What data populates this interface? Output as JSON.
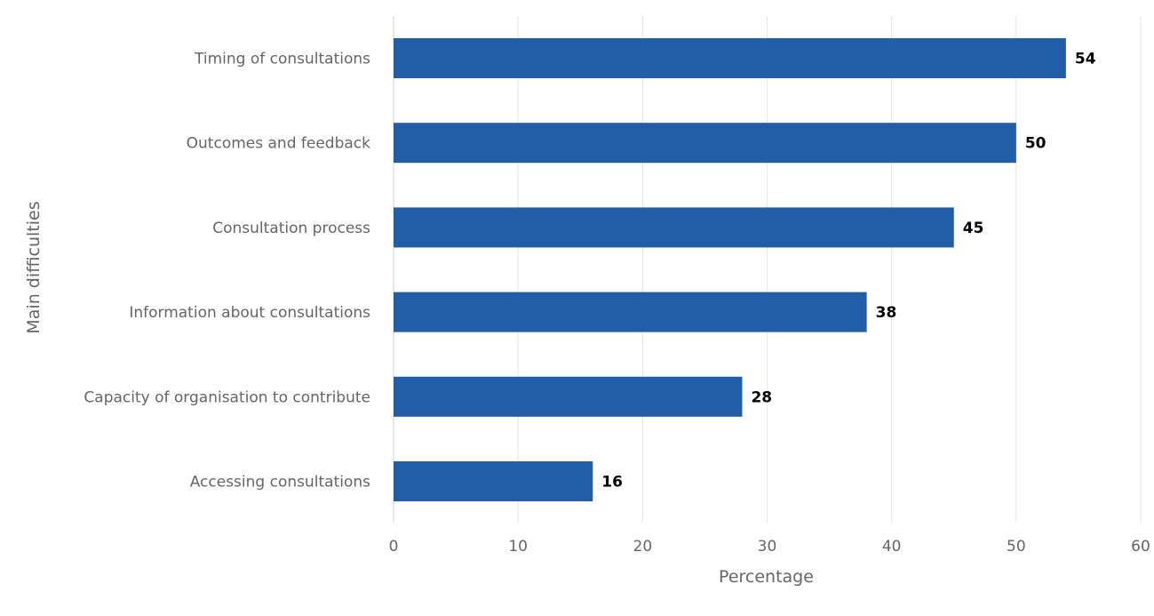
{
  "chart_data": {
    "type": "bar",
    "orientation": "horizontal",
    "categories": [
      "Timing of consultations",
      "Outcomes and feedback",
      "Consultation process",
      "Information about consultations",
      "Capacity of organisation to contribute",
      "Accessing consultations"
    ],
    "values": [
      54,
      50,
      45,
      38,
      28,
      16
    ],
    "xlabel": "Percentage",
    "ylabel": "Main difficulties",
    "xlim": [
      0,
      60
    ],
    "xticks": [
      0,
      10,
      20,
      30,
      40,
      50,
      60
    ],
    "grid": true,
    "bar_color": "#225ea8"
  }
}
